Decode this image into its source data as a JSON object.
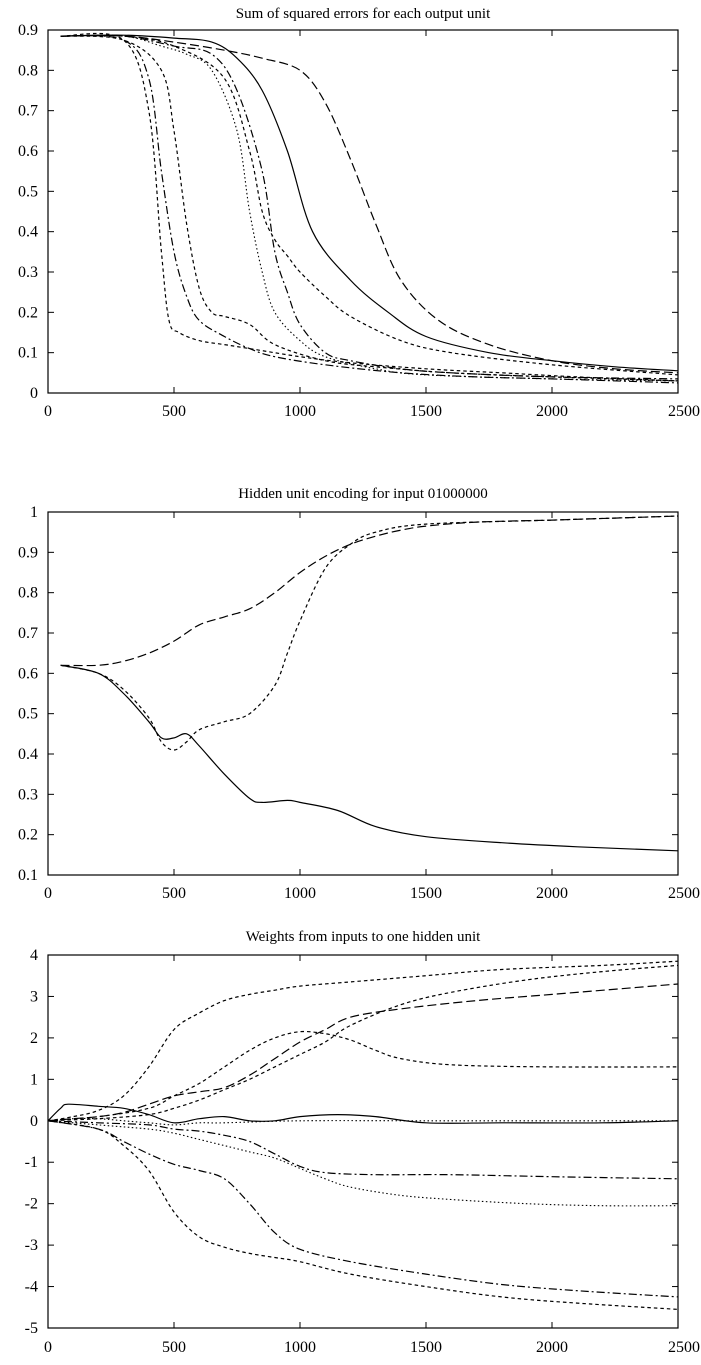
{
  "chart_data": [
    {
      "type": "line",
      "title": "Sum of squared errors for each output unit",
      "xlabel": "",
      "ylabel": "",
      "xlim": [
        0,
        2500
      ],
      "ylim": [
        0,
        0.9
      ],
      "xticks": [
        "0",
        "500",
        "1000",
        "1500",
        "2000",
        "2500"
      ],
      "yticks": [
        "0",
        "0.1",
        "0.2",
        "0.3",
        "0.4",
        "0.5",
        "0.6",
        "0.7",
        "0.8",
        "0.9"
      ],
      "grid": false,
      "series": [
        {
          "style": "solid",
          "x": [
            50,
            300,
            500,
            650,
            750,
            850,
            950,
            1050,
            1200,
            1350,
            1500,
            1750,
            2000,
            2250,
            2500
          ],
          "y": [
            0.885,
            0.887,
            0.88,
            0.87,
            0.83,
            0.75,
            0.6,
            0.4,
            0.28,
            0.2,
            0.14,
            0.1,
            0.08,
            0.065,
            0.055
          ]
        },
        {
          "style": "dashed",
          "x": [
            50,
            300,
            500,
            700,
            850,
            1000,
            1100,
            1200,
            1300,
            1400,
            1550,
            1750,
            2000,
            2250,
            2500
          ],
          "y": [
            0.885,
            0.885,
            0.87,
            0.85,
            0.83,
            0.8,
            0.72,
            0.58,
            0.42,
            0.28,
            0.18,
            0.12,
            0.08,
            0.06,
            0.05
          ]
        },
        {
          "style": "dotted",
          "x": [
            50,
            300,
            450,
            550,
            650,
            750,
            800,
            850,
            900,
            1000,
            1100,
            1300,
            1500,
            2000,
            2500
          ],
          "y": [
            0.885,
            0.885,
            0.86,
            0.84,
            0.8,
            0.65,
            0.45,
            0.3,
            0.2,
            0.13,
            0.09,
            0.06,
            0.045,
            0.035,
            0.03
          ]
        },
        {
          "style": "dashdot",
          "x": [
            50,
            300,
            500,
            650,
            750,
            850,
            900,
            950,
            1000,
            1100,
            1200,
            1400,
            1600,
            2000,
            2500
          ],
          "y": [
            0.885,
            0.885,
            0.86,
            0.84,
            0.75,
            0.55,
            0.35,
            0.25,
            0.17,
            0.1,
            0.08,
            0.06,
            0.05,
            0.04,
            0.035
          ]
        },
        {
          "style": "shortdash",
          "x": [
            50,
            300,
            400,
            450,
            480,
            520,
            600,
            700,
            800,
            1000,
            1200,
            1500,
            1800,
            2100,
            2500
          ],
          "y": [
            0.885,
            0.875,
            0.7,
            0.35,
            0.18,
            0.15,
            0.13,
            0.12,
            0.11,
            0.09,
            0.075,
            0.06,
            0.05,
            0.04,
            0.03
          ]
        },
        {
          "style": "dashdot",
          "x": [
            50,
            300,
            400,
            450,
            500,
            550,
            600,
            700,
            800,
            900,
            1100,
            1400,
            1700,
            2000,
            2500
          ],
          "y": [
            0.885,
            0.875,
            0.78,
            0.55,
            0.35,
            0.24,
            0.18,
            0.14,
            0.11,
            0.09,
            0.07,
            0.05,
            0.04,
            0.035,
            0.025
          ]
        },
        {
          "style": "shortdash",
          "x": [
            50,
            300,
            450,
            500,
            550,
            600,
            650,
            700,
            800,
            900,
            1100,
            1300,
            1600,
            2000,
            2500
          ],
          "y": [
            0.885,
            0.875,
            0.8,
            0.65,
            0.42,
            0.26,
            0.2,
            0.19,
            0.17,
            0.12,
            0.08,
            0.065,
            0.05,
            0.04,
            0.03
          ]
        },
        {
          "style": "shortdash",
          "x": [
            50,
            300,
            500,
            700,
            800,
            850,
            900,
            950,
            1000,
            1100,
            1200,
            1400,
            1600,
            2000,
            2500
          ],
          "y": [
            0.885,
            0.885,
            0.86,
            0.78,
            0.6,
            0.45,
            0.38,
            0.34,
            0.3,
            0.24,
            0.19,
            0.13,
            0.1,
            0.07,
            0.045
          ]
        }
      ]
    },
    {
      "type": "line",
      "title": "Hidden unit encoding for input 01000000",
      "xlabel": "",
      "ylabel": "",
      "xlim": [
        0,
        2500
      ],
      "ylim": [
        0.1,
        1
      ],
      "xticks": [
        "0",
        "500",
        "1000",
        "1500",
        "2000",
        "2500"
      ],
      "yticks": [
        "0.1",
        "0.2",
        "0.3",
        "0.4",
        "0.5",
        "0.6",
        "0.7",
        "0.8",
        "0.9",
        "1"
      ],
      "grid": false,
      "series": [
        {
          "style": "solid",
          "x": [
            50,
            200,
            300,
            400,
            450,
            500,
            550,
            600,
            700,
            800,
            850,
            950,
            1000,
            1150,
            1300,
            1500,
            1800,
            2100,
            2500
          ],
          "y": [
            0.62,
            0.6,
            0.55,
            0.48,
            0.44,
            0.44,
            0.45,
            0.42,
            0.35,
            0.29,
            0.28,
            0.285,
            0.28,
            0.26,
            0.22,
            0.195,
            0.18,
            0.17,
            0.16
          ]
        },
        {
          "style": "dashed",
          "x": [
            50,
            200,
            300,
            400,
            500,
            600,
            700,
            800,
            900,
            1000,
            1100,
            1200,
            1300,
            1400,
            1500,
            1700,
            2000,
            2250,
            2500
          ],
          "y": [
            0.62,
            0.62,
            0.63,
            0.65,
            0.68,
            0.72,
            0.74,
            0.76,
            0.8,
            0.85,
            0.89,
            0.92,
            0.94,
            0.955,
            0.965,
            0.975,
            0.98,
            0.985,
            0.99
          ]
        },
        {
          "style": "shortdash",
          "x": [
            50,
            200,
            300,
            400,
            450,
            500,
            550,
            600,
            700,
            800,
            900,
            950,
            1000,
            1100,
            1200,
            1300,
            1500,
            2000,
            2500
          ],
          "y": [
            0.62,
            0.6,
            0.56,
            0.49,
            0.43,
            0.41,
            0.43,
            0.46,
            0.48,
            0.5,
            0.57,
            0.65,
            0.73,
            0.86,
            0.92,
            0.95,
            0.97,
            0.98,
            0.99
          ]
        }
      ]
    },
    {
      "type": "line",
      "title": "Weights from inputs to one hidden unit",
      "xlabel": "",
      "ylabel": "",
      "xlim": [
        0,
        2500
      ],
      "ylim": [
        -5,
        4
      ],
      "xticks": [
        "0",
        "500",
        "1000",
        "1500",
        "2000",
        "2500"
      ],
      "yticks": [
        "-5",
        "-4",
        "-3",
        "-2",
        "-1",
        "0",
        "1",
        "2",
        "3",
        "4"
      ],
      "grid": false,
      "series": [
        {
          "style": "solid",
          "x": [
            0,
            50,
            80,
            200,
            300,
            400,
            500,
            600,
            700,
            800,
            900,
            1000,
            1150,
            1300,
            1500,
            1800,
            2200,
            2500
          ],
          "y": [
            0,
            0.3,
            0.4,
            0.35,
            0.3,
            0.15,
            -0.05,
            0.05,
            0.1,
            0.0,
            0.0,
            0.1,
            0.15,
            0.1,
            -0.05,
            -0.05,
            -0.05,
            0.0
          ]
        },
        {
          "style": "dotted",
          "x": [
            0,
            100,
            200,
            300,
            400,
            500,
            600,
            700,
            1000,
            1500,
            2000,
            2500
          ],
          "y": [
            0,
            0.05,
            0.05,
            0.0,
            -0.05,
            -0.1,
            -0.05,
            -0.05,
            0.0,
            0.0,
            0.0,
            0.0
          ]
        },
        {
          "style": "shortdash",
          "x": [
            0,
            100,
            200,
            300,
            400,
            500,
            600,
            700,
            800,
            900,
            1000,
            1200,
            1500,
            1800,
            2200,
            2500
          ],
          "y": [
            0,
            0.1,
            0.25,
            0.6,
            1.3,
            2.2,
            2.6,
            2.9,
            3.05,
            3.15,
            3.25,
            3.35,
            3.5,
            3.65,
            3.75,
            3.85
          ]
        },
        {
          "style": "dashed",
          "x": [
            0,
            100,
            200,
            300,
            400,
            500,
            600,
            700,
            800,
            900,
            1000,
            1100,
            1200,
            1400,
            1700,
            2000,
            2300,
            2500
          ],
          "y": [
            0,
            0.05,
            0.1,
            0.2,
            0.4,
            0.6,
            0.7,
            0.8,
            1.1,
            1.5,
            1.9,
            2.2,
            2.5,
            2.7,
            2.9,
            3.05,
            3.2,
            3.3
          ]
        },
        {
          "style": "shortdash",
          "x": [
            0,
            200,
            400,
            500,
            600,
            700,
            800,
            900,
            1000,
            1100,
            1200,
            1300,
            1400,
            1600,
            2000,
            2500
          ],
          "y": [
            0,
            0.1,
            0.3,
            0.6,
            0.9,
            1.3,
            1.7,
            2.0,
            2.15,
            2.1,
            1.95,
            1.7,
            1.5,
            1.35,
            1.3,
            1.3
          ]
        },
        {
          "style": "shortdash",
          "x": [
            0,
            200,
            400,
            500,
            600,
            700,
            800,
            900,
            1000,
            1100,
            1200,
            1400,
            1600,
            1900,
            2200,
            2500
          ],
          "y": [
            0,
            0.05,
            0.15,
            0.3,
            0.5,
            0.75,
            1.0,
            1.3,
            1.6,
            1.9,
            2.3,
            2.8,
            3.1,
            3.4,
            3.6,
            3.75
          ]
        },
        {
          "style": "dotted",
          "x": [
            0,
            200,
            400,
            500,
            600,
            700,
            800,
            900,
            1000,
            1100,
            1200,
            1400,
            1600,
            1900,
            2200,
            2500
          ],
          "y": [
            0,
            -0.1,
            -0.2,
            -0.3,
            -0.45,
            -0.6,
            -0.75,
            -0.9,
            -1.15,
            -1.4,
            -1.6,
            -1.8,
            -1.9,
            -2.0,
            -2.05,
            -2.05
          ]
        },
        {
          "style": "dashdot",
          "x": [
            0,
            200,
            400,
            500,
            600,
            700,
            800,
            900,
            1000,
            1100,
            1300,
            1600,
            2000,
            2500
          ],
          "y": [
            0,
            -0.05,
            -0.1,
            -0.2,
            -0.25,
            -0.35,
            -0.5,
            -0.8,
            -1.1,
            -1.25,
            -1.3,
            -1.3,
            -1.35,
            -1.4
          ]
        },
        {
          "style": "dashdot",
          "x": [
            0,
            200,
            300,
            400,
            500,
            600,
            700,
            800,
            900,
            1000,
            1200,
            1500,
            1800,
            2100,
            2500
          ],
          "y": [
            0,
            -0.2,
            -0.5,
            -0.8,
            -1.05,
            -1.2,
            -1.4,
            -2.0,
            -2.7,
            -3.1,
            -3.4,
            -3.7,
            -3.95,
            -4.1,
            -4.25
          ]
        },
        {
          "style": "shortdash",
          "x": [
            0,
            200,
            300,
            400,
            500,
            600,
            700,
            800,
            900,
            1000,
            1200,
            1500,
            1800,
            2100,
            2500
          ],
          "y": [
            0,
            -0.2,
            -0.6,
            -1.2,
            -2.2,
            -2.8,
            -3.05,
            -3.2,
            -3.3,
            -3.4,
            -3.7,
            -4.0,
            -4.25,
            -4.4,
            -4.55
          ]
        }
      ]
    }
  ]
}
